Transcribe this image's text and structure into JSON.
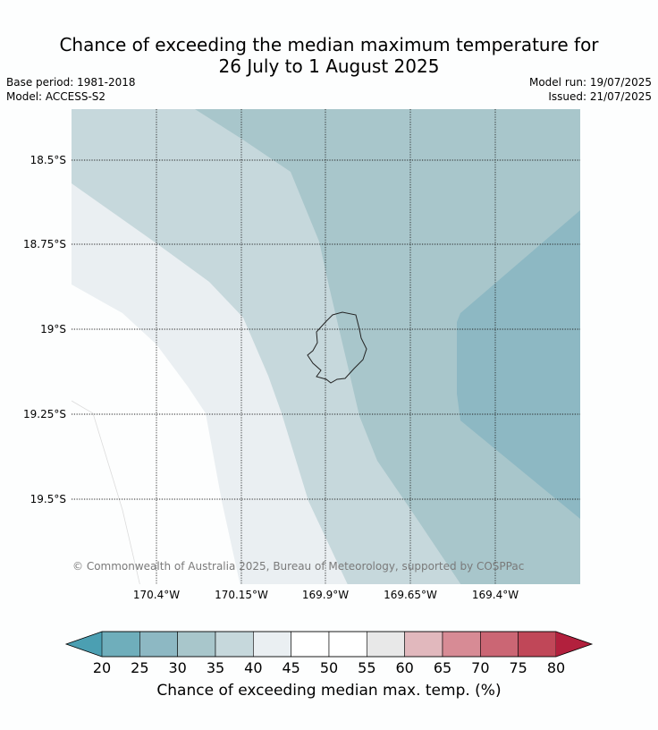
{
  "header": {
    "title_line1": "Chance of exceeding the median maximum temperature for",
    "title_line2": "26 July to 1 August 2025",
    "base_period": "Base period: 1981-2018",
    "model": "Model: ACCESS-S2",
    "model_run": "Model run: 19/07/2025",
    "issued": "Issued: 21/07/2025"
  },
  "map": {
    "latitude_labels": [
      "18.5°S",
      "18.75°S",
      "19°S",
      "19.25°S",
      "19.5°S"
    ],
    "longitude_labels": [
      "170.4°W",
      "170.15°W",
      "169.9°W",
      "169.65°W",
      "169.4°W"
    ],
    "copyright": "© Commonwealth of Australia 2025, Bureau of Meteorology, supported by COSPPac",
    "zone_colors": {
      "c25_30": "#8db8c3",
      "c30_35": "#a8c6cb",
      "c35_40": "#c6d8dc",
      "c40_45": "#eaeff2",
      "c45_50": "#fdfefe"
    }
  },
  "colorbar": {
    "ticks": [
      "20",
      "25",
      "30",
      "35",
      "40",
      "45",
      "50",
      "55",
      "60",
      "65",
      "70",
      "75",
      "80"
    ],
    "colors": [
      "#4b9fb2",
      "#6faebb",
      "#8db8c3",
      "#a8c6cb",
      "#c6d8dc",
      "#eaeff2",
      "#ffffff",
      "#ffffff",
      "#e8e8e8",
      "#e1b8bd",
      "#d78b95",
      "#cb6674",
      "#c04758",
      "#b2203d"
    ],
    "label": "Chance of exceeding median max. temp. (%)"
  }
}
